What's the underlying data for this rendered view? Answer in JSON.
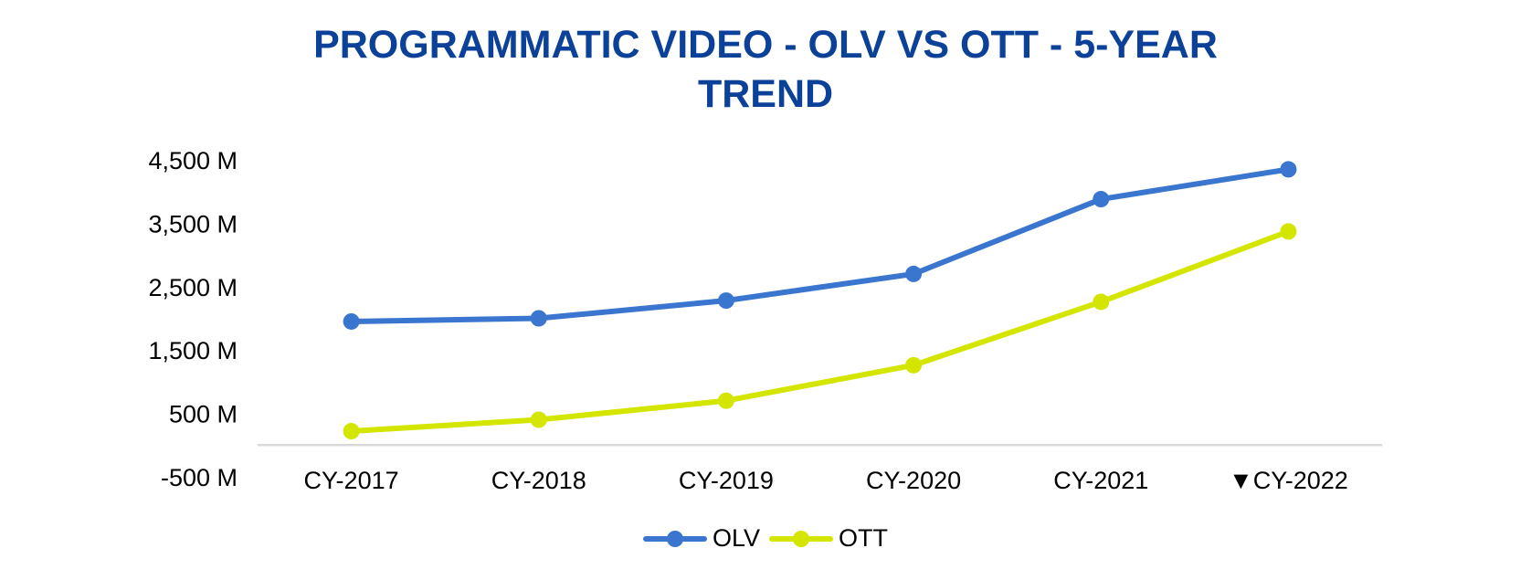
{
  "chart_data": {
    "type": "line",
    "title_lines": [
      "PROGRAMMATIC VIDEO - OLV VS OTT - 5-YEAR",
      "TREND"
    ],
    "categories": [
      "CY-2017",
      "CY-2018",
      "CY-2019",
      "CY-2020",
      "CY-2021",
      "▼CY-2022"
    ],
    "y_ticks": [
      -500,
      500,
      1500,
      2500,
      3500,
      4500
    ],
    "y_tick_labels": [
      "-500 M",
      "500 M",
      "1,500 M",
      "2,500 M",
      "3,500 M",
      "4,500 M"
    ],
    "ylim": [
      -500,
      4500
    ],
    "x_axis_at": 0,
    "grid": false,
    "legend_position": "bottom",
    "series": [
      {
        "name": "OLV",
        "color": "#3A76CF",
        "values": [
          1950,
          2000,
          2280,
          2700,
          3880,
          4350
        ]
      },
      {
        "name": "OTT",
        "color": "#D4E600",
        "values": [
          220,
          400,
          700,
          1260,
          2260,
          3370
        ]
      }
    ]
  }
}
